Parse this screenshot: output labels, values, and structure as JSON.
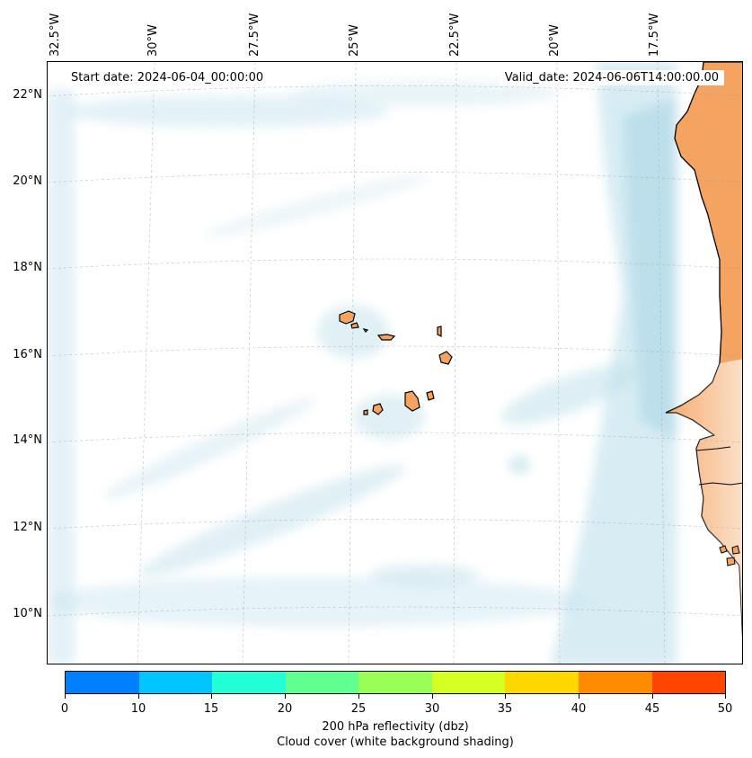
{
  "map": {
    "start_date": "Start date: 2024-06-04_00:00:00",
    "valid_date": "Valid_date: 2024-06-06T14:00:00.00",
    "lon_labels": [
      "32.5°W",
      "30°W",
      "27.5°W",
      "25°W",
      "22.5°W",
      "20°W",
      "17.5°W"
    ],
    "lat_labels": [
      "22°N",
      "20°N",
      "18°N",
      "16°N",
      "14°N",
      "12°N",
      "10°N"
    ],
    "land_color": "#f4a460",
    "cloud_color": "#add8e6"
  },
  "colorbar": {
    "colors": [
      "#007fff",
      "#00c5ff",
      "#22ffd6",
      "#5fff90",
      "#99ff55",
      "#d6ff22",
      "#ffd700",
      "#ff8c00",
      "#ff4500"
    ],
    "tick_labels": [
      "0",
      "10",
      "15",
      "20",
      "25",
      "30",
      "35",
      "40",
      "45",
      "50"
    ],
    "label": "200 hPa reflectivity (dbz)",
    "sublabel": "Cloud cover (white background shading)"
  }
}
